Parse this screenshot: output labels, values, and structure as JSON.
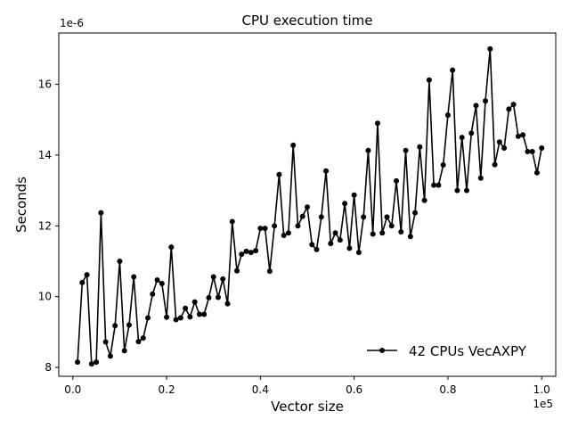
{
  "chart_data": {
    "type": "line",
    "title": "CPU execution time",
    "xlabel": "Vector size",
    "ylabel": "Seconds",
    "x_offset_text": "1e5",
    "y_offset_text": "1e-6",
    "xlim": [
      -0.03,
      1.03
    ],
    "ylim": [
      7.75,
      17.45
    ],
    "xticks": [
      0.0,
      0.2,
      0.4,
      0.6,
      0.8,
      1.0
    ],
    "xtick_labels": [
      "0.0",
      "0.2",
      "0.4",
      "0.6",
      "0.8",
      "1.0"
    ],
    "yticks": [
      8,
      10,
      12,
      14,
      16
    ],
    "ytick_labels": [
      "8",
      "10",
      "12",
      "14",
      "16"
    ],
    "grid": false,
    "legend_position": "lower right",
    "series": [
      {
        "name": "42 CPUs VecAXPY",
        "color": "#000000",
        "marker": "circle",
        "x": [
          0.01,
          0.02,
          0.03,
          0.04,
          0.05,
          0.06,
          0.07,
          0.08,
          0.09,
          0.1,
          0.11,
          0.12,
          0.13,
          0.14,
          0.15,
          0.16,
          0.17,
          0.18,
          0.19,
          0.2,
          0.21,
          0.22,
          0.23,
          0.24,
          0.25,
          0.26,
          0.27,
          0.28,
          0.29,
          0.3,
          0.31,
          0.32,
          0.33,
          0.34,
          0.35,
          0.36,
          0.37,
          0.38,
          0.39,
          0.4,
          0.41,
          0.42,
          0.43,
          0.44,
          0.45,
          0.46,
          0.47,
          0.48,
          0.49,
          0.5,
          0.51,
          0.52,
          0.53,
          0.54,
          0.55,
          0.56,
          0.57,
          0.58,
          0.59,
          0.6,
          0.61,
          0.62,
          0.63,
          0.64,
          0.65,
          0.66,
          0.67,
          0.68,
          0.69,
          0.7,
          0.71,
          0.72,
          0.73,
          0.74,
          0.75,
          0.76,
          0.77,
          0.78,
          0.79,
          0.8,
          0.81,
          0.82,
          0.83,
          0.84,
          0.85,
          0.86,
          0.87,
          0.88,
          0.89,
          0.9,
          0.91,
          0.92,
          0.93,
          0.94,
          0.95,
          0.96,
          0.97,
          0.98,
          0.99,
          1.0
        ],
        "y": [
          8.15,
          10.4,
          10.62,
          8.1,
          8.15,
          12.37,
          8.72,
          8.32,
          9.18,
          11.0,
          8.47,
          9.2,
          10.56,
          8.73,
          8.83,
          9.4,
          10.07,
          10.47,
          10.37,
          9.42,
          11.4,
          9.35,
          9.4,
          9.67,
          9.43,
          9.85,
          9.5,
          9.5,
          9.97,
          10.56,
          9.98,
          10.5,
          9.8,
          12.12,
          10.73,
          11.2,
          11.28,
          11.25,
          11.3,
          11.93,
          11.93,
          10.72,
          12.0,
          13.45,
          11.73,
          11.8,
          14.28,
          12.0,
          12.27,
          12.53,
          11.47,
          11.33,
          12.25,
          13.55,
          11.5,
          11.8,
          11.6,
          12.63,
          11.37,
          12.87,
          11.25,
          12.25,
          14.13,
          11.77,
          14.9,
          11.8,
          12.25,
          12.0,
          13.27,
          11.83,
          14.13,
          11.7,
          12.37,
          14.23,
          12.72,
          16.12,
          13.15,
          13.15,
          13.72,
          15.13,
          16.4,
          13.0,
          14.5,
          13.0,
          14.62,
          15.4,
          13.35,
          15.53,
          17.0,
          13.73,
          14.37,
          14.2,
          15.3,
          15.43,
          14.53,
          14.57,
          14.1,
          14.1,
          13.5,
          14.2
        ]
      }
    ]
  }
}
